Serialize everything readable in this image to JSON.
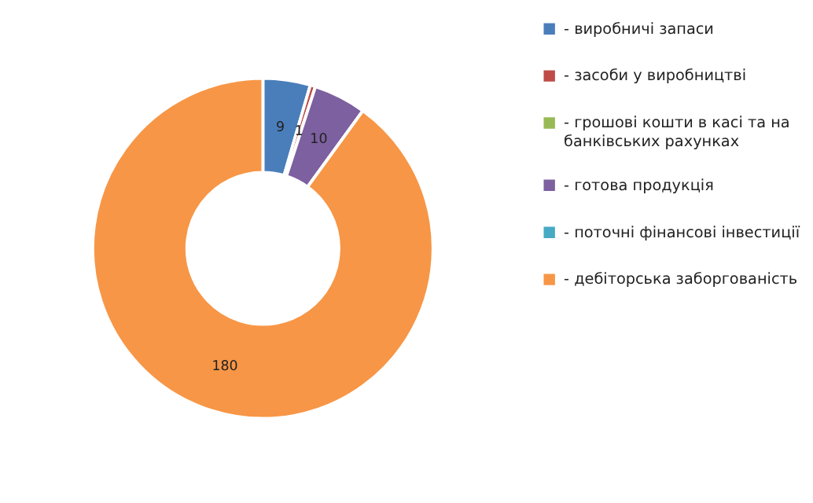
{
  "chart_data": {
    "type": "donut",
    "categories": [
      "- виробничі запаси",
      "- засоби у виробництві",
      "- грошові кошти в касі та на банківських рахунках",
      "- готова продукція",
      "- поточні фінансові інвестиції",
      "- дебіторська заборгованість"
    ],
    "values": [
      9,
      1,
      0,
      10,
      0,
      180
    ],
    "colors": [
      "#4a7ebb",
      "#be4b48",
      "#98b954",
      "#7d60a0",
      "#46aac5",
      "#f79646"
    ],
    "value_labels": [
      "9",
      "1",
      null,
      "10",
      null,
      "180"
    ],
    "legend": "right"
  }
}
